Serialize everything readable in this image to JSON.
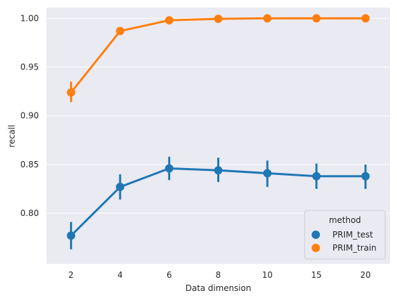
{
  "chart_data": {
    "type": "line",
    "title": "",
    "xlabel": "Data dimension",
    "ylabel": "recall",
    "categories": [
      "2",
      "4",
      "6",
      "8",
      "10",
      "15",
      "20"
    ],
    "ylim": [
      0.748,
      1.011
    ],
    "yticks": [
      "0.80",
      "0.85",
      "0.90",
      "0.95",
      "1.00"
    ],
    "grid": true,
    "legend": {
      "title": "method",
      "position": "lower-right"
    },
    "series": [
      {
        "name": "PRIM_test",
        "color": "#1f77b4",
        "values": [
          0.777,
          0.827,
          0.846,
          0.844,
          0.841,
          0.838,
          0.838
        ],
        "ci_low": [
          0.763,
          0.814,
          0.834,
          0.832,
          0.827,
          0.825,
          0.825
        ],
        "ci_high": [
          0.791,
          0.84,
          0.858,
          0.857,
          0.854,
          0.851,
          0.85
        ]
      },
      {
        "name": "PRIM_train",
        "color": "#ff7f0e",
        "values": [
          0.924,
          0.987,
          0.998,
          0.9995,
          1.0,
          1.0,
          1.0
        ],
        "ci_low": [
          0.914,
          0.984,
          0.997,
          0.9985,
          0.9995,
          0.9995,
          0.9995
        ],
        "ci_high": [
          0.935,
          0.99,
          0.999,
          1.0,
          1.0,
          1.0,
          1.0
        ]
      }
    ]
  }
}
